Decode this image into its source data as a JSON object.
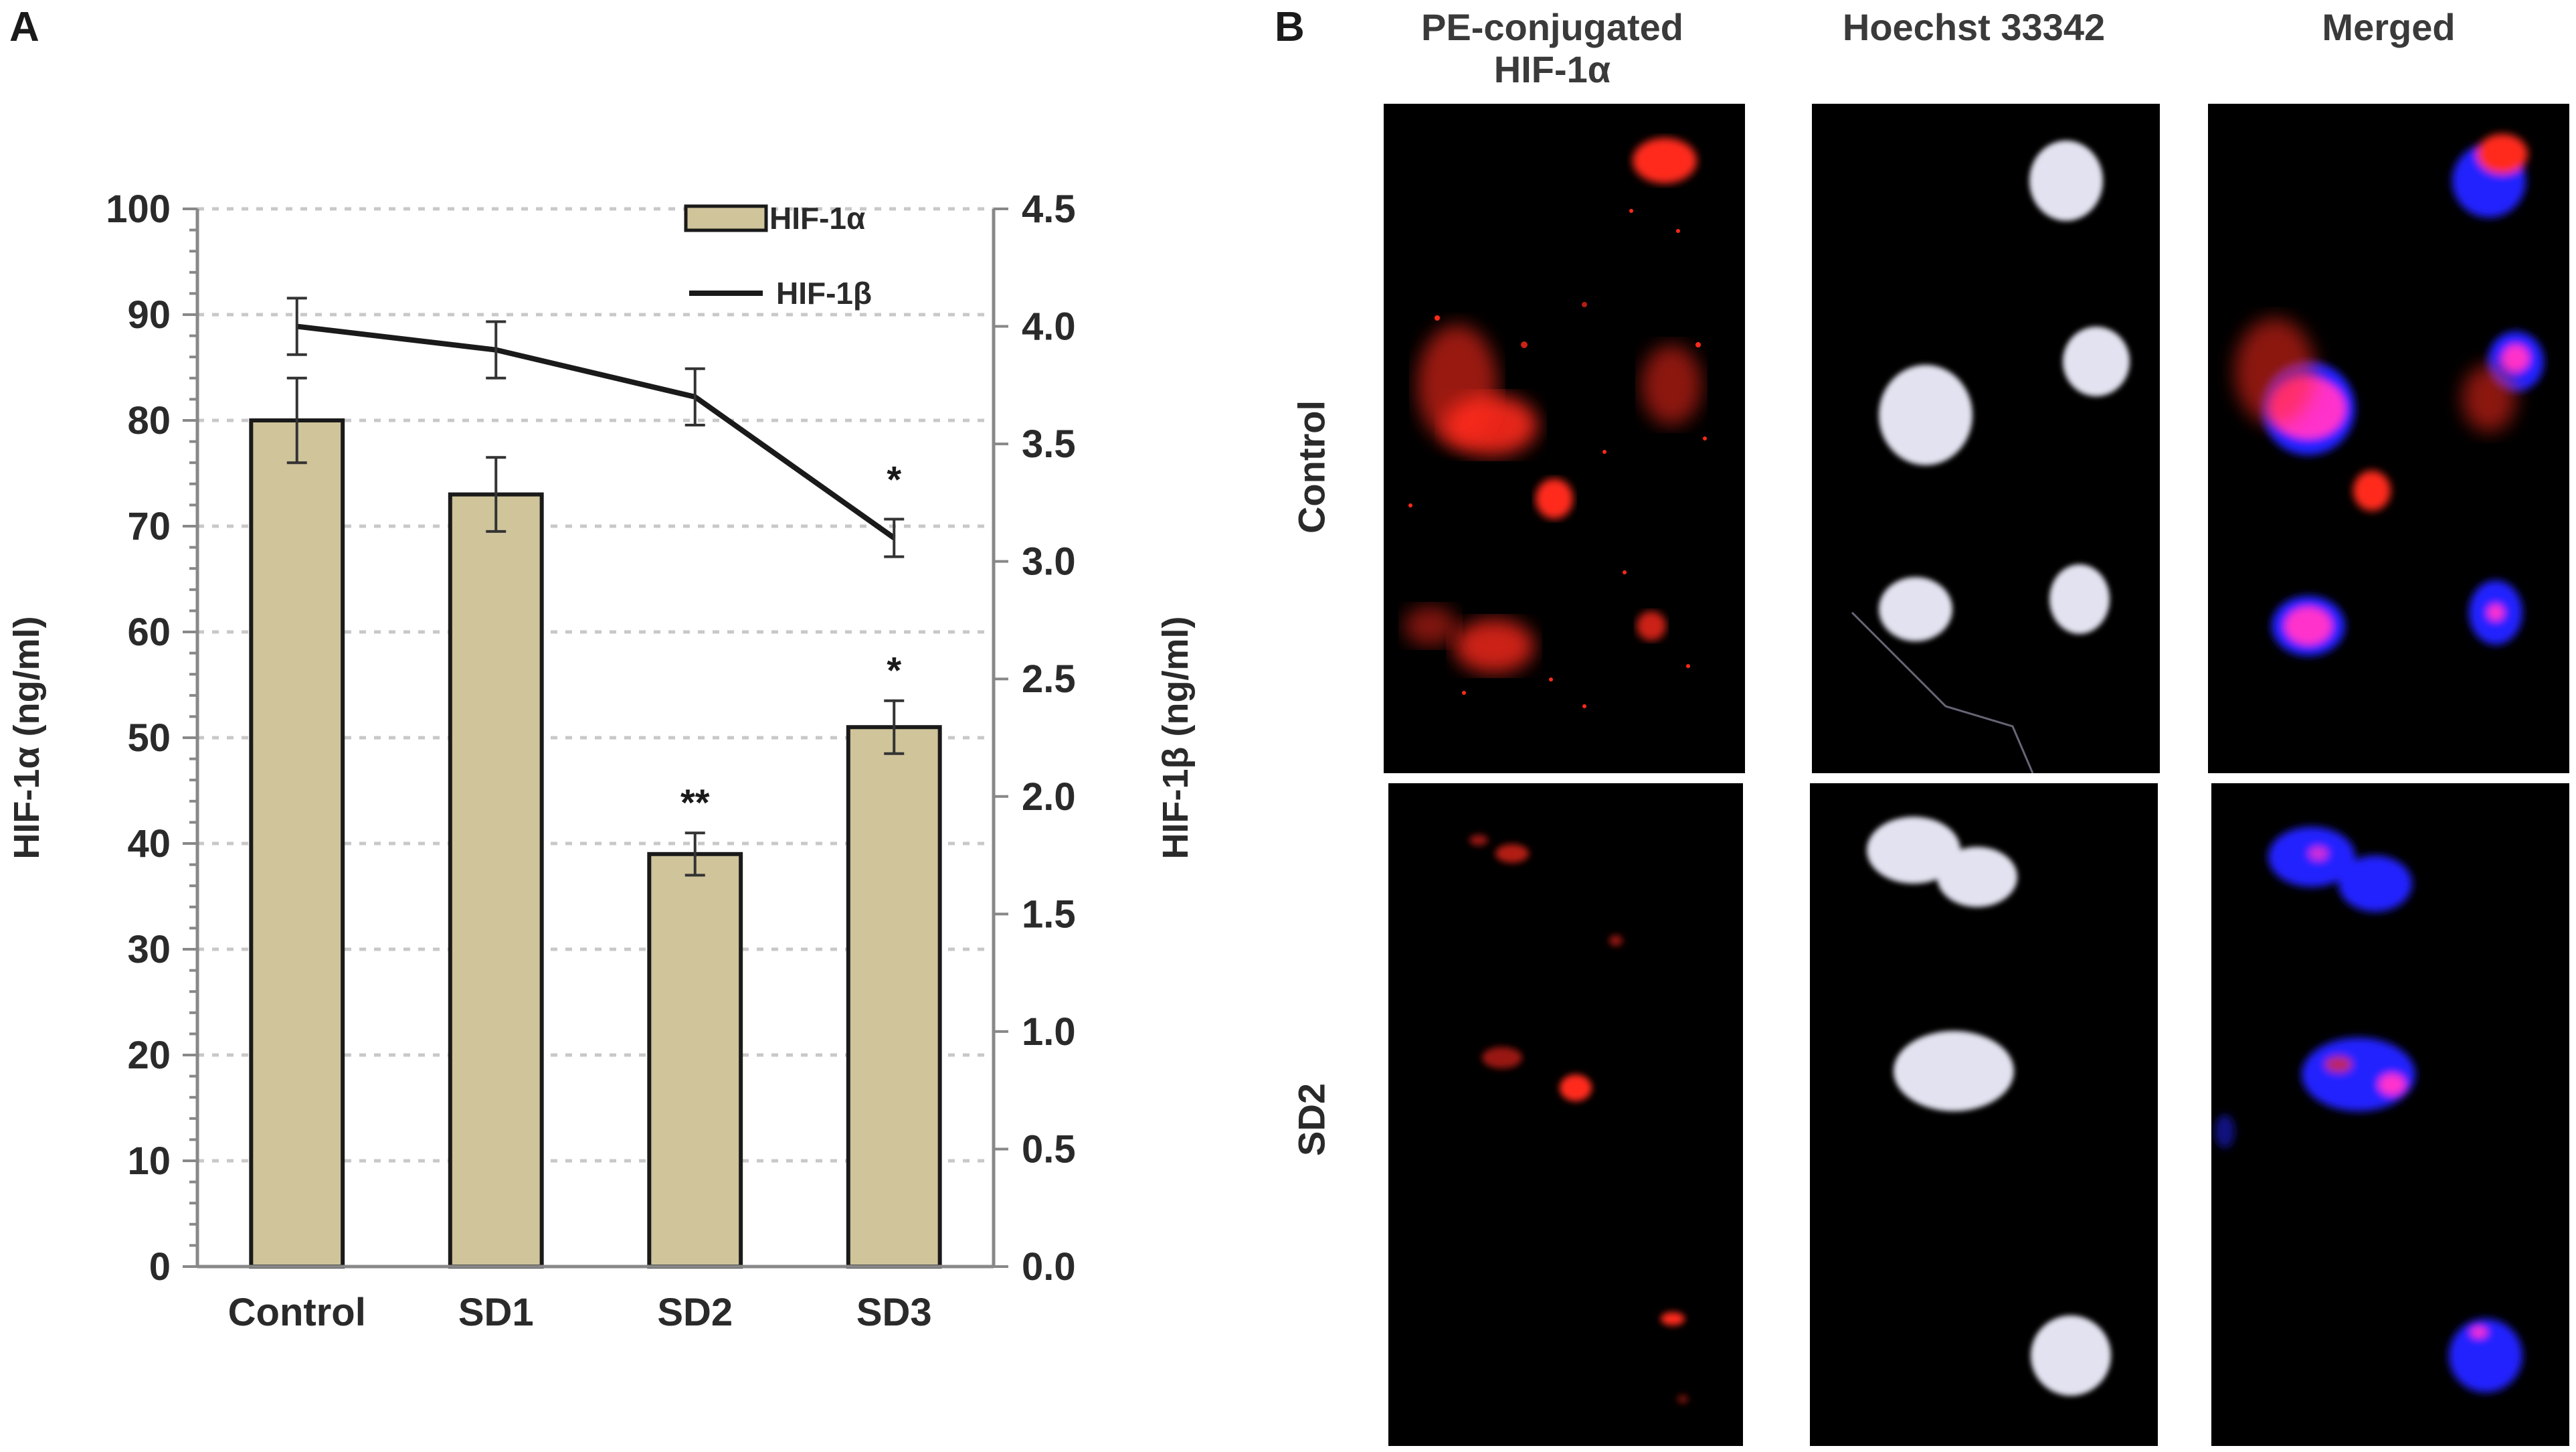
{
  "panels": {
    "a_letter": "A",
    "b_letter": "B"
  },
  "chart_data": {
    "type": "bar",
    "categories": [
      "Control",
      "SD1",
      "SD2",
      "SD3"
    ],
    "series": [
      {
        "name": "HIF-1α",
        "kind": "bar",
        "axis": "left",
        "values": [
          80,
          73,
          39,
          51
        ],
        "errors": [
          4,
          3.5,
          2,
          2.5
        ],
        "significance": [
          "",
          "",
          "**",
          "*"
        ],
        "color": "#cfc49a"
      },
      {
        "name": "HIF-1β",
        "kind": "line",
        "axis": "right",
        "values": [
          4.0,
          3.9,
          3.7,
          3.1
        ],
        "errors": [
          0.12,
          0.12,
          0.12,
          0.08
        ],
        "significance": [
          "",
          "",
          "",
          "*"
        ],
        "color": "#1a1a1a"
      }
    ],
    "ylabel": "HIF-1α (ng/ml)",
    "y2label": "HIF-1β (ng/ml)",
    "ylim": [
      0,
      100
    ],
    "y2lim": [
      0,
      4.5
    ],
    "yticks": [
      "0",
      "10",
      "20",
      "30",
      "40",
      "50",
      "60",
      "70",
      "80",
      "90",
      "100"
    ],
    "y2ticks": [
      "0.0",
      "0.5",
      "1.0",
      "1.5",
      "2.0",
      "2.5",
      "3.0",
      "3.5",
      "4.0",
      "4.5"
    ],
    "grid": true,
    "legend_position": "top-right"
  },
  "micrographs": {
    "columns": [
      "PE-conjugated\nHIF-1α",
      "Hoechst 33342",
      "Merged"
    ],
    "rows": [
      "Control",
      "SD2"
    ],
    "colors": {
      "pe": "#ff2a1a",
      "hoechst": "#e2e2f0",
      "merged_nucleus": "#2222ff",
      "merged_overlap": "#ff33cc"
    }
  }
}
